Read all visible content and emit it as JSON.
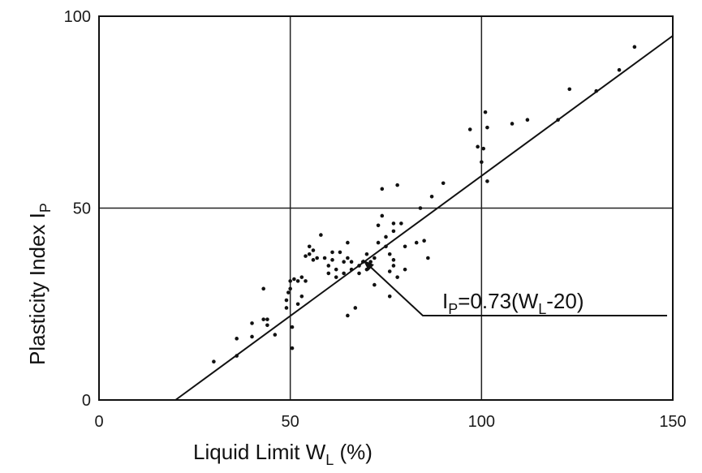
{
  "chart_data": {
    "type": "scatter",
    "xlabel": {
      "main": "Liquid   Limit   W",
      "sub": "L",
      "unit": "  (%)"
    },
    "ylabel": {
      "main": "Plasticity   Index   I",
      "sub": "P"
    },
    "xlim": [
      0,
      150
    ],
    "ylim": [
      0,
      100
    ],
    "x_ticks": [
      0,
      50,
      100,
      150
    ],
    "x_tick_labels": [
      "0",
      "50",
      "100",
      "150"
    ],
    "y_ticks": [
      0,
      50,
      100
    ],
    "y_tick_labels": [
      "0",
      "50",
      "100"
    ],
    "grid": true,
    "regression": {
      "slope": 0.73,
      "intercept_x": 20,
      "x_range": [
        20,
        150
      ]
    },
    "annotation": {
      "pre": "I",
      "sub1": "P",
      "mid": "=0.73(W",
      "sub2": "L",
      "post": "-20)",
      "points_to": [
        69,
        36.5
      ]
    },
    "points": [
      [
        30,
        10
      ],
      [
        36,
        11.5
      ],
      [
        36,
        16
      ],
      [
        40,
        16.5
      ],
      [
        40,
        20
      ],
      [
        43,
        29
      ],
      [
        43,
        21
      ],
      [
        44,
        21
      ],
      [
        44,
        19.5
      ],
      [
        46,
        17
      ],
      [
        49,
        24
      ],
      [
        49,
        26
      ],
      [
        49.5,
        28
      ],
      [
        50,
        29
      ],
      [
        50,
        31
      ],
      [
        50.5,
        19
      ],
      [
        50.5,
        13.5
      ],
      [
        51,
        31.5
      ],
      [
        52,
        25
      ],
      [
        52,
        31
      ],
      [
        53,
        32
      ],
      [
        53,
        27
      ],
      [
        54,
        37.5
      ],
      [
        54,
        31
      ],
      [
        55,
        38
      ],
      [
        55,
        40
      ],
      [
        56,
        36.5
      ],
      [
        56,
        39
      ],
      [
        57,
        37
      ],
      [
        58,
        43
      ],
      [
        59,
        37
      ],
      [
        60,
        35
      ],
      [
        60,
        33
      ],
      [
        61,
        38.5
      ],
      [
        61,
        36.5
      ],
      [
        62,
        34
      ],
      [
        62,
        32
      ],
      [
        63,
        38.5
      ],
      [
        64,
        36
      ],
      [
        64,
        33
      ],
      [
        65,
        37
      ],
      [
        65,
        41
      ],
      [
        65,
        22
      ],
      [
        66,
        36
      ],
      [
        66,
        34
      ],
      [
        67,
        24
      ],
      [
        68,
        35
      ],
      [
        68,
        33
      ],
      [
        69,
        36
      ],
      [
        70,
        34
      ],
      [
        70,
        38
      ],
      [
        71,
        36
      ],
      [
        72,
        30
      ],
      [
        72,
        37
      ],
      [
        73,
        45.5
      ],
      [
        73,
        41
      ],
      [
        74,
        55
      ],
      [
        74,
        48
      ],
      [
        75,
        42.5
      ],
      [
        75,
        40
      ],
      [
        76,
        33.5
      ],
      [
        76,
        38
      ],
      [
        76,
        27
      ],
      [
        77,
        44
      ],
      [
        77,
        46
      ],
      [
        77,
        35
      ],
      [
        77,
        36.5
      ],
      [
        78,
        56
      ],
      [
        78,
        32
      ],
      [
        79,
        46
      ],
      [
        80,
        40
      ],
      [
        80,
        34
      ],
      [
        83,
        41
      ],
      [
        84,
        50
      ],
      [
        85,
        41.5
      ],
      [
        86,
        37
      ],
      [
        87,
        53
      ],
      [
        90,
        56.5
      ],
      [
        97,
        70.5
      ],
      [
        99,
        66
      ],
      [
        100,
        62
      ],
      [
        100.5,
        65.5
      ],
      [
        101,
        75
      ],
      [
        101.5,
        57
      ],
      [
        101.5,
        71
      ],
      [
        108,
        72
      ],
      [
        112,
        73
      ],
      [
        120,
        73
      ],
      [
        123,
        81
      ],
      [
        130,
        80.5
      ],
      [
        136,
        86
      ],
      [
        140,
        92
      ]
    ]
  }
}
